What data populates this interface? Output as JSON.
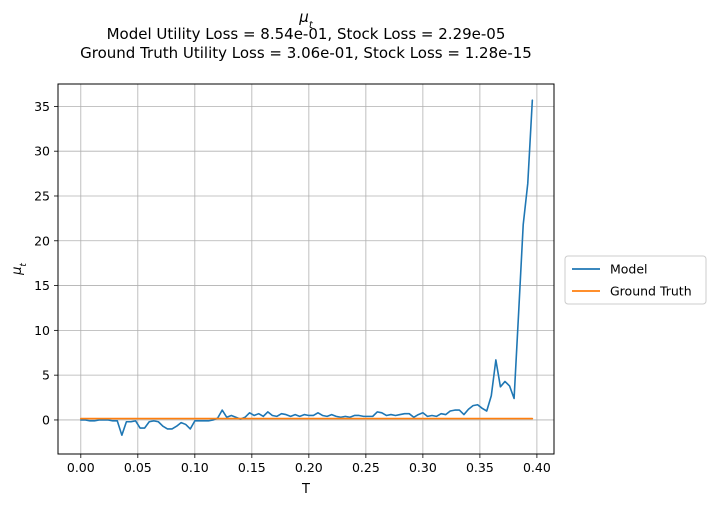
{
  "chart_data": {
    "type": "line",
    "title": "μ_t",
    "subtitle_lines": [
      "Model Utility Loss = 8.54e-01, Stock Loss = 2.29e-05",
      "Ground Truth Utility Loss = 3.06e-01, Stock Loss = 1.28e-15"
    ],
    "xlabel": "T",
    "ylabel": "μ_t",
    "xlim": [
      -0.02,
      0.415
    ],
    "ylim": [
      -3.8,
      37.5
    ],
    "xticks": [
      0.0,
      0.05,
      0.1,
      0.15,
      0.2,
      0.25,
      0.3,
      0.35,
      0.4
    ],
    "xtick_labels": [
      "0.00",
      "0.05",
      "0.10",
      "0.15",
      "0.20",
      "0.25",
      "0.30",
      "0.35",
      "0.40"
    ],
    "yticks": [
      0,
      5,
      10,
      15,
      20,
      25,
      30,
      35
    ],
    "ytick_labels": [
      "0",
      "5",
      "10",
      "15",
      "20",
      "25",
      "30",
      "35"
    ],
    "grid": true,
    "legend_position": "outside-right",
    "series": [
      {
        "name": "Model",
        "color": "#1f77b4",
        "x": [
          0.0,
          0.004,
          0.008,
          0.012,
          0.016,
          0.02,
          0.024,
          0.028,
          0.032,
          0.036,
          0.04,
          0.044,
          0.048,
          0.052,
          0.056,
          0.06,
          0.064,
          0.068,
          0.072,
          0.076,
          0.08,
          0.084,
          0.088,
          0.092,
          0.096,
          0.1,
          0.104,
          0.108,
          0.112,
          0.116,
          0.12,
          0.124,
          0.128,
          0.132,
          0.136,
          0.14,
          0.144,
          0.148,
          0.152,
          0.156,
          0.16,
          0.164,
          0.168,
          0.172,
          0.176,
          0.18,
          0.184,
          0.188,
          0.192,
          0.196,
          0.2,
          0.204,
          0.208,
          0.212,
          0.216,
          0.22,
          0.224,
          0.228,
          0.232,
          0.236,
          0.24,
          0.244,
          0.248,
          0.252,
          0.256,
          0.26,
          0.264,
          0.268,
          0.272,
          0.276,
          0.28,
          0.284,
          0.288,
          0.292,
          0.296,
          0.3,
          0.304,
          0.308,
          0.312,
          0.316,
          0.32,
          0.324,
          0.328,
          0.332,
          0.336,
          0.34,
          0.344,
          0.348,
          0.352,
          0.356,
          0.36,
          0.364,
          0.368,
          0.372,
          0.376,
          0.38,
          0.384,
          0.388,
          0.392,
          0.396
        ],
        "y": [
          0.0,
          0.0,
          -0.1,
          -0.1,
          0.0,
          0.0,
          0.0,
          -0.1,
          -0.1,
          -1.7,
          -0.2,
          -0.2,
          -0.1,
          -0.9,
          -0.9,
          -0.2,
          -0.1,
          -0.2,
          -0.7,
          -1.0,
          -1.0,
          -0.7,
          -0.3,
          -0.5,
          -1.0,
          -0.1,
          -0.1,
          -0.1,
          -0.1,
          0.0,
          0.2,
          1.1,
          0.3,
          0.5,
          0.3,
          0.1,
          0.3,
          0.8,
          0.5,
          0.7,
          0.4,
          0.9,
          0.5,
          0.4,
          0.7,
          0.6,
          0.4,
          0.6,
          0.4,
          0.6,
          0.5,
          0.5,
          0.8,
          0.5,
          0.4,
          0.6,
          0.4,
          0.3,
          0.4,
          0.3,
          0.5,
          0.5,
          0.4,
          0.4,
          0.4,
          0.9,
          0.8,
          0.5,
          0.6,
          0.5,
          0.6,
          0.7,
          0.7,
          0.3,
          0.6,
          0.8,
          0.4,
          0.5,
          0.4,
          0.7,
          0.6,
          1.0,
          1.1,
          1.1,
          0.6,
          1.2,
          1.6,
          1.7,
          1.3,
          1.0,
          2.7,
          6.7,
          3.7,
          4.3,
          3.8,
          2.4,
          12.0,
          21.8,
          26.4,
          35.7
        ]
      },
      {
        "name": "Ground Truth",
        "color": "#ff7f0e",
        "x": [
          0.0,
          0.05,
          0.1,
          0.15,
          0.2,
          0.25,
          0.3,
          0.35,
          0.396
        ],
        "y": [
          0.15,
          0.15,
          0.15,
          0.15,
          0.15,
          0.15,
          0.15,
          0.15,
          0.15
        ]
      }
    ]
  }
}
